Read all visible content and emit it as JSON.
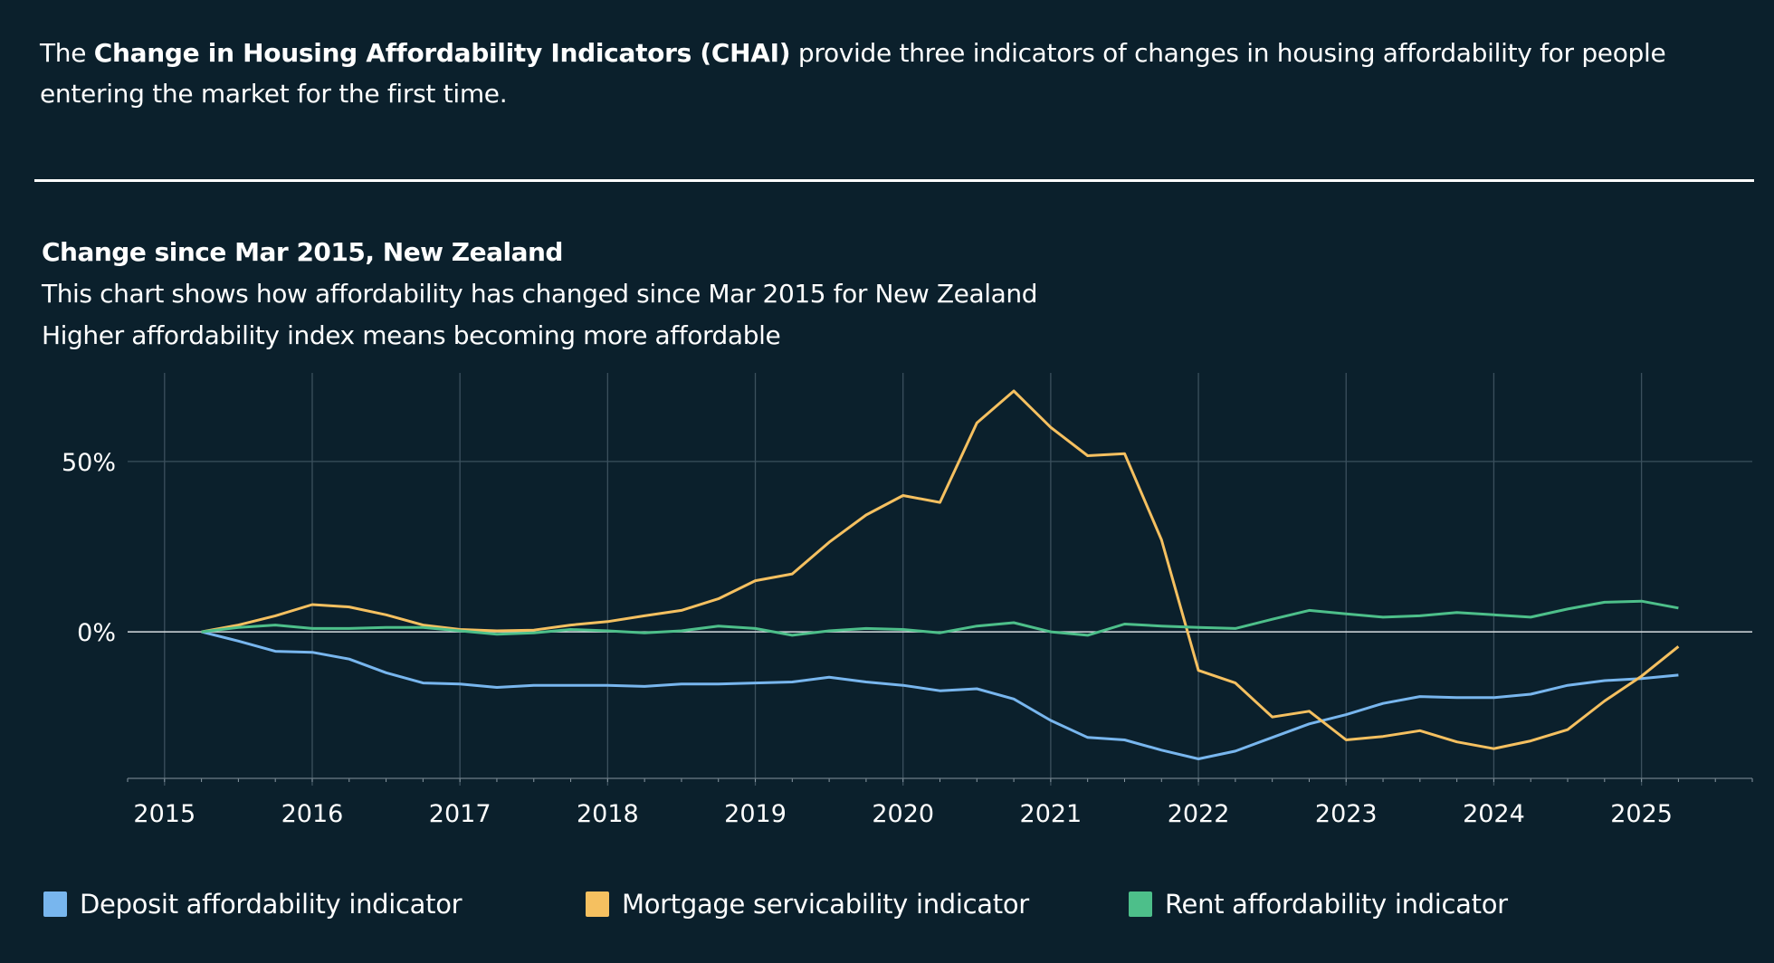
{
  "intro": {
    "prefix": "The ",
    "bold": "Change in Housing Affordability Indicators (CHAI)",
    "suffix": " provide three indicators of changes in housing affordability for people entering the market for the first time."
  },
  "chart_header": {
    "title": "Change since Mar 2015, New Zealand",
    "subtitle1": "This chart shows how affordability has changed since Mar 2015 for New Zealand",
    "subtitle2": "Higher affordability index means becoming more affordable"
  },
  "chart_data": {
    "type": "line",
    "title": "Change since Mar 2015, New Zealand",
    "xlabel": "",
    "ylabel": "",
    "x_start": "Mar 2015",
    "x_frequency": "quarterly",
    "x_tick_labels": [
      "2015",
      "2016",
      "2017",
      "2018",
      "2019",
      "2020",
      "2021",
      "2022",
      "2023",
      "2024",
      "2025"
    ],
    "xlim": [
      2014.75,
      2025.75
    ],
    "ylim": [
      -43,
      76
    ],
    "y_unit": "%",
    "y_ticks": [
      0,
      50
    ],
    "y_tick_labels": [
      "0%",
      "50%"
    ],
    "grid": true,
    "legend_position": "bottom",
    "series": [
      {
        "name": "Deposit affordability indicator",
        "color": "#78b6ee",
        "values": [
          0,
          -2.7,
          -5.7,
          -6,
          -8,
          -12,
          -15,
          -15.3,
          -16.3,
          -15.7,
          -15.7,
          -15.7,
          -16,
          -15.3,
          -15.3,
          -15,
          -14.7,
          -13.3,
          -14.7,
          -15.7,
          -17.3,
          -16.7,
          -19.7,
          -26,
          -31,
          -31.7,
          -34.7,
          -37.3,
          -35,
          -31,
          -27,
          -24.3,
          -21,
          -19,
          -19.3,
          -19.3,
          -18.3,
          -15.7,
          -14.3,
          -13.7,
          -12.7
        ]
      },
      {
        "name": "Mortgage servicability indicator",
        "color": "#f5c060",
        "values": [
          0,
          2,
          4.7,
          8,
          7.3,
          5,
          2,
          0.7,
          0.3,
          0.5,
          2,
          3,
          4.7,
          6.3,
          9.7,
          15,
          17,
          26.3,
          34.3,
          40,
          38,
          61.3,
          70.7,
          60,
          51.7,
          52.3,
          27,
          -11.3,
          -15,
          -25,
          -23.3,
          -31.7,
          -30.7,
          -29,
          -32.3,
          -34.3,
          -32,
          -28.7,
          -20.3,
          -13,
          -4.3
        ]
      },
      {
        "name": "Rent affordability indicator",
        "color": "#4dbf8a",
        "values": [
          0,
          1.3,
          2,
          1,
          1,
          1.3,
          1.3,
          0.3,
          -0.7,
          -0.3,
          0.7,
          0.3,
          -0.3,
          0.3,
          1.7,
          1,
          -1,
          0.3,
          1,
          0.7,
          -0.3,
          1.7,
          2.7,
          0,
          -1,
          2.3,
          1.7,
          1.3,
          1,
          3.7,
          6.3,
          5.3,
          4.3,
          4.7,
          5.7,
          5,
          4.3,
          6.7,
          8.7,
          9,
          7
        ]
      }
    ]
  },
  "colors": {
    "background": "#0b202c",
    "grid": "#3b505d",
    "zero_line": "#d8dde0"
  }
}
